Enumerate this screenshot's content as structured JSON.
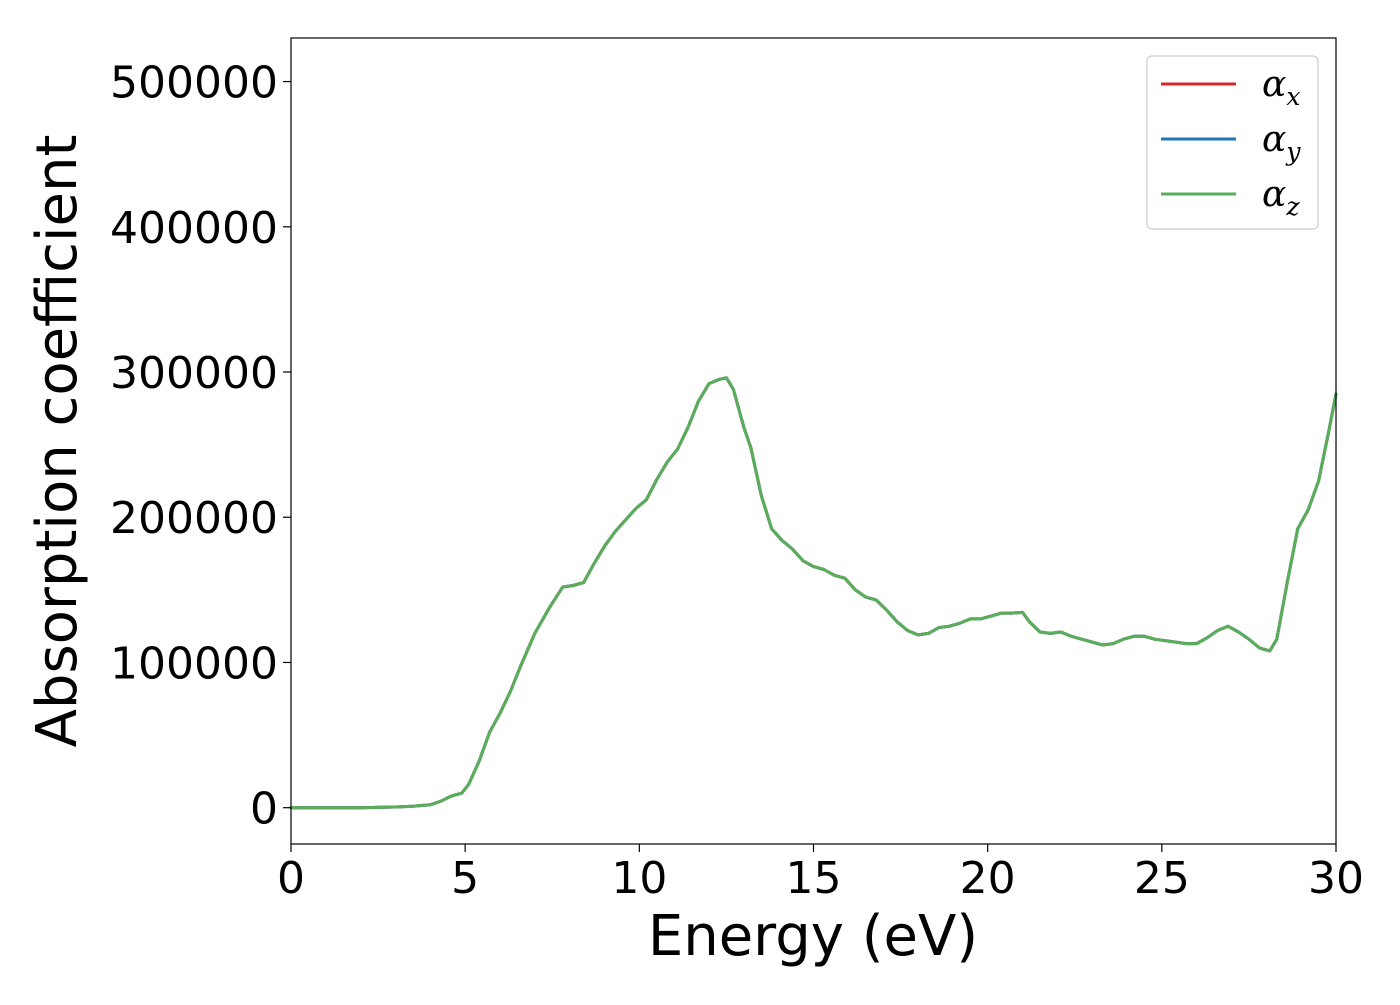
{
  "chart_data": {
    "type": "line",
    "xlabel": "Energy (eV)",
    "ylabel": "Absorption coefficient",
    "xlim": [
      0,
      30
    ],
    "ylim": [
      -25000,
      530000
    ],
    "xticks": [
      0,
      5,
      10,
      15,
      20,
      25,
      30
    ],
    "yticks": [
      0,
      100000,
      200000,
      300000,
      400000,
      500000
    ],
    "grid": false,
    "legend_position": "top-right",
    "series": [
      {
        "name": "α",
        "subscript": "x",
        "color": "#d62728"
      },
      {
        "name": "α",
        "subscript": "y",
        "color": "#1f77b4"
      },
      {
        "name": "α",
        "subscript": "z",
        "color": "#5aae5a"
      }
    ],
    "x": [
      0,
      1,
      2,
      3,
      3.5,
      4.0,
      4.3,
      4.6,
      4.9,
      5.1,
      5.4,
      5.7,
      6.0,
      6.3,
      6.6,
      7.0,
      7.4,
      7.8,
      8.1,
      8.4,
      8.7,
      9.0,
      9.3,
      9.6,
      9.9,
      10.2,
      10.5,
      10.8,
      11.1,
      11.4,
      11.7,
      12.0,
      12.3,
      12.5,
      12.7,
      13.0,
      13.2,
      13.5,
      13.8,
      14.1,
      14.4,
      14.7,
      15.0,
      15.3,
      15.6,
      15.9,
      16.2,
      16.5,
      16.8,
      17.1,
      17.4,
      17.7,
      18.0,
      18.3,
      18.6,
      18.9,
      19.2,
      19.5,
      19.8,
      20.1,
      20.4,
      20.7,
      21.0,
      21.2,
      21.5,
      21.8,
      22.1,
      22.4,
      22.7,
      23.0,
      23.3,
      23.6,
      23.9,
      24.2,
      24.5,
      24.8,
      25.1,
      25.4,
      25.7,
      26.0,
      26.3,
      26.6,
      26.9,
      27.2,
      27.5,
      27.8,
      28.1,
      28.3,
      28.6,
      28.9,
      29.2,
      29.5,
      29.8,
      30.0
    ],
    "values": [
      0,
      0,
      0,
      500,
      1000,
      2000,
      4500,
      8000,
      10000,
      16000,
      32000,
      52000,
      65000,
      80000,
      98000,
      120000,
      137000,
      152000,
      153000,
      155000,
      168000,
      180000,
      190000,
      198000,
      206000,
      212000,
      226000,
      238000,
      247000,
      262000,
      280000,
      292000,
      295000,
      296000,
      288000,
      262000,
      248000,
      215000,
      192000,
      184000,
      178000,
      170000,
      166000,
      164000,
      160000,
      158000,
      150000,
      145000,
      143000,
      136000,
      128000,
      122000,
      119000,
      120000,
      124000,
      125000,
      127000,
      130000,
      130000,
      132000,
      134000,
      134000,
      134500,
      128000,
      121000,
      120000,
      121000,
      118000,
      116000,
      114000,
      112000,
      113000,
      116000,
      118000,
      118000,
      116000,
      115000,
      114000,
      113000,
      113000,
      117000,
      122000,
      125000,
      121000,
      116000,
      110000,
      108000,
      116000,
      155000,
      192000,
      205000,
      225000,
      260000,
      285000
    ]
  }
}
